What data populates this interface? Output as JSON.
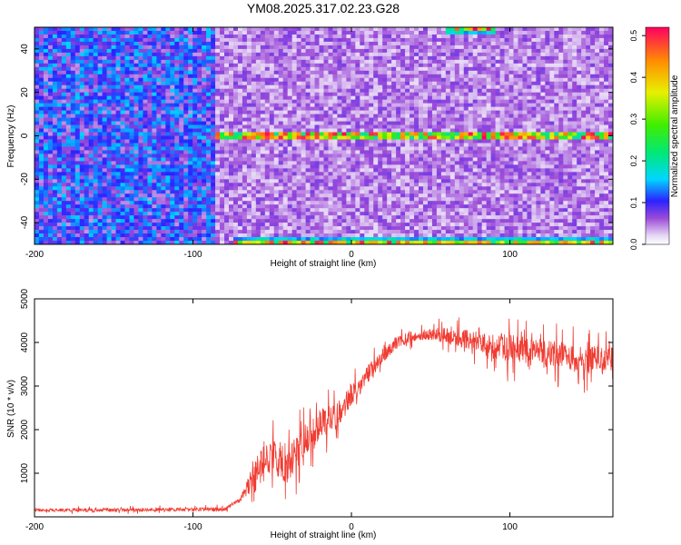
{
  "page": {
    "title": "YM08.2025.317.02.23.G28"
  },
  "chart_data": [
    {
      "type": "heatmap",
      "xlabel": "Height of straight line (km)",
      "ylabel": "Frequency (Hz)",
      "xlim": [
        -200,
        165
      ],
      "ylim": [
        -50,
        50
      ],
      "x_ticks": [
        -200,
        -100,
        0,
        100
      ],
      "y_ticks": [
        -40,
        -20,
        0,
        20,
        40
      ],
      "colorbar": {
        "label": "Normalized spectral amplitude",
        "range": [
          0,
          0.52
        ],
        "ticks": [
          0.0,
          0.1,
          0.2,
          0.3,
          0.4,
          0.5
        ]
      },
      "features": [
        {
          "name": "carrier band",
          "frequency": 0,
          "x_range": [
            -85,
            165
          ]
        },
        {
          "name": "lower edge band",
          "frequency": -49,
          "x_range": [
            -75,
            165
          ]
        },
        {
          "name": "upper edge band",
          "frequency": 49,
          "x_range": [
            60,
            90
          ]
        }
      ],
      "background_amplitude": {
        "x_below_-85": 0.11,
        "x_above_-85": 0.05
      }
    },
    {
      "type": "line",
      "xlabel": "Height of straight line (km)",
      "ylabel": "SNR (10 * v/v)",
      "xlim": [
        -200,
        165
      ],
      "ylim": [
        0,
        5000
      ],
      "x_ticks": [
        -200,
        -100,
        0,
        100
      ],
      "y_ticks": [
        1000,
        2000,
        3000,
        4000,
        5000
      ],
      "color": "#f03c32",
      "trend": {
        "x": [
          -200,
          -80,
          -70,
          -60,
          -50,
          -40,
          -30,
          -20,
          -10,
          0,
          10,
          20,
          30,
          40,
          50,
          60,
          70,
          80,
          90,
          100,
          110,
          120,
          130,
          140,
          150,
          165
        ],
        "y": [
          150,
          170,
          400,
          1000,
          1400,
          1200,
          1750,
          2100,
          2300,
          2800,
          3250,
          3700,
          4050,
          4150,
          4200,
          4150,
          4100,
          4000,
          3900,
          3850,
          3800,
          3750,
          3700,
          3650,
          3600,
          3600
        ]
      },
      "noise_amplitude": {
        "x": [
          -200,
          -70,
          -60,
          -50,
          -20,
          0,
          20,
          40,
          80,
          100,
          165
        ],
        "y": [
          60,
          80,
          700,
          800,
          600,
          450,
          300,
          200,
          400,
          550,
          550
        ]
      }
    }
  ]
}
